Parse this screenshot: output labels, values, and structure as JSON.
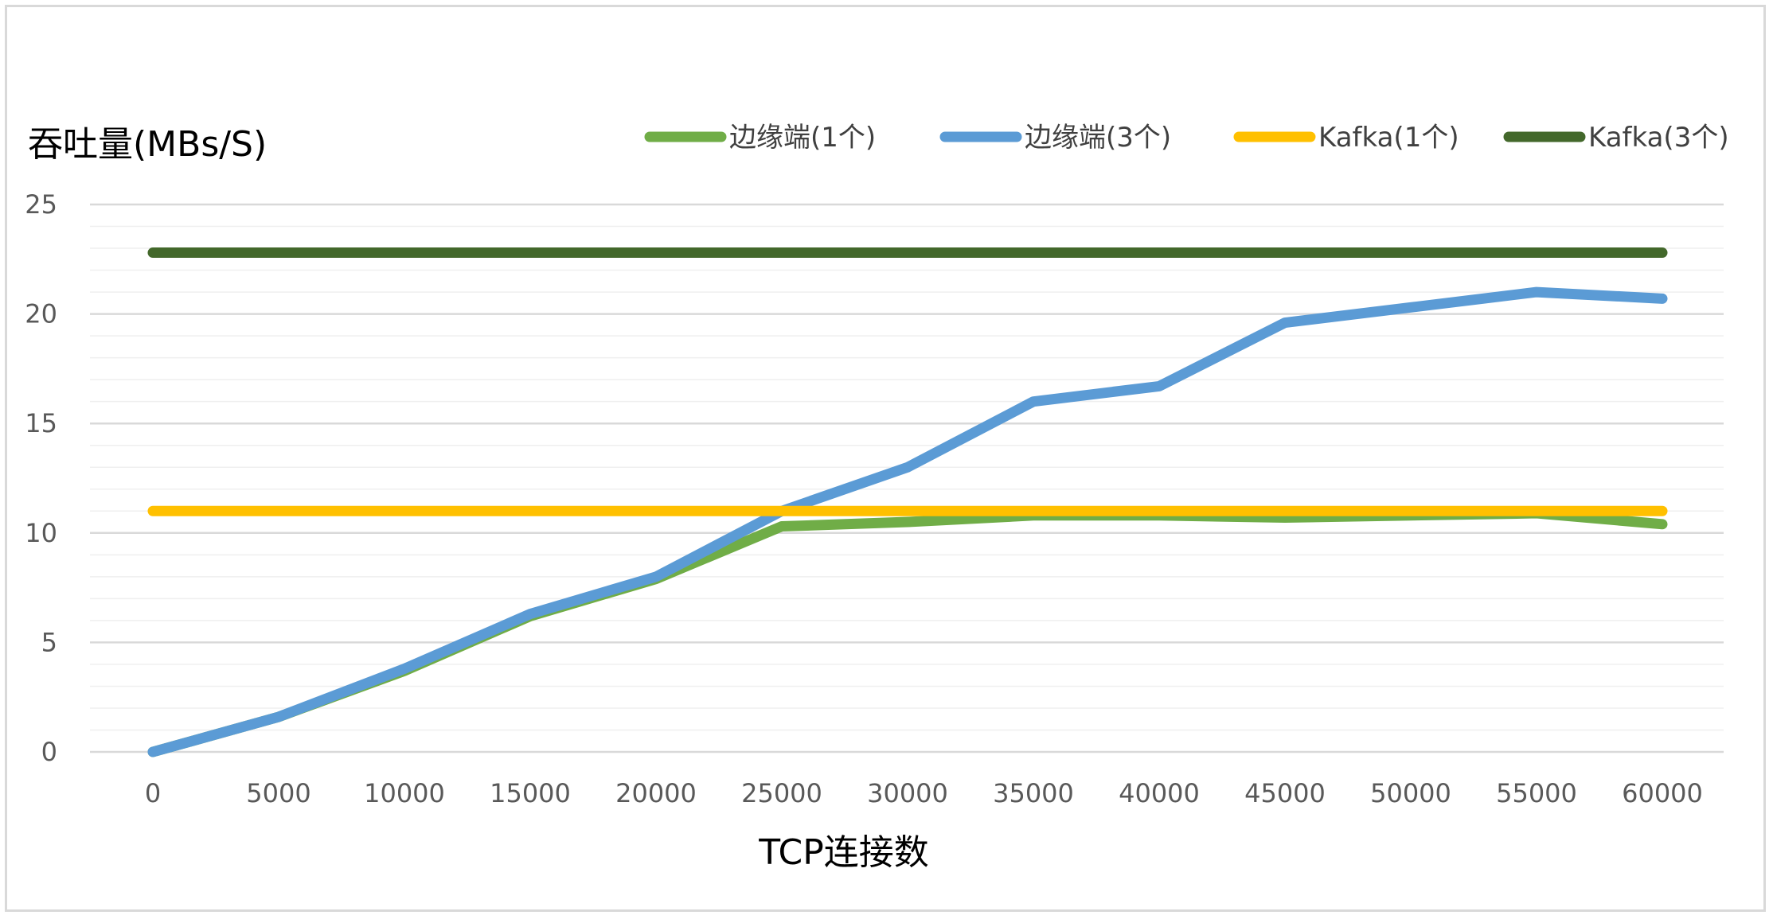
{
  "chart_data": {
    "type": "line",
    "title": "",
    "xlabel": "TCP连接数",
    "ylabel": "吞吐量(MBs/S)",
    "ylim": [
      0,
      25
    ],
    "yticks": [
      0,
      5,
      10,
      15,
      20,
      25
    ],
    "categories": [
      "0",
      "5000",
      "10000",
      "15000",
      "20000",
      "25000",
      "30000",
      "35000",
      "40000",
      "45000",
      "50000",
      "55000",
      "60000"
    ],
    "grid": "horizontal major and minor gridlines",
    "legend_position": "top",
    "series": [
      {
        "name": "边缘端(1个)",
        "color": "#70ad47",
        "values": [
          0,
          1.6,
          3.7,
          6.2,
          7.9,
          10.3,
          10.5,
          10.8,
          10.8,
          10.7,
          10.8,
          10.9,
          10.4
        ]
      },
      {
        "name": "边缘端(3个)",
        "color": "#5b9bd5",
        "values": [
          0,
          1.6,
          3.8,
          6.3,
          8.0,
          11.0,
          13.0,
          16.0,
          16.7,
          19.6,
          20.3,
          21.0,
          20.7
        ]
      },
      {
        "name": "Kafka(1个)",
        "color": "#ffc000",
        "values": [
          11,
          11,
          11,
          11,
          11,
          11,
          11,
          11,
          11,
          11,
          11,
          11,
          11
        ]
      },
      {
        "name": "Kafka(3个)",
        "color": "#43682b",
        "values": [
          22.8,
          22.8,
          22.8,
          22.8,
          22.8,
          22.8,
          22.8,
          22.8,
          22.8,
          22.8,
          22.8,
          22.8,
          22.8
        ]
      }
    ]
  }
}
